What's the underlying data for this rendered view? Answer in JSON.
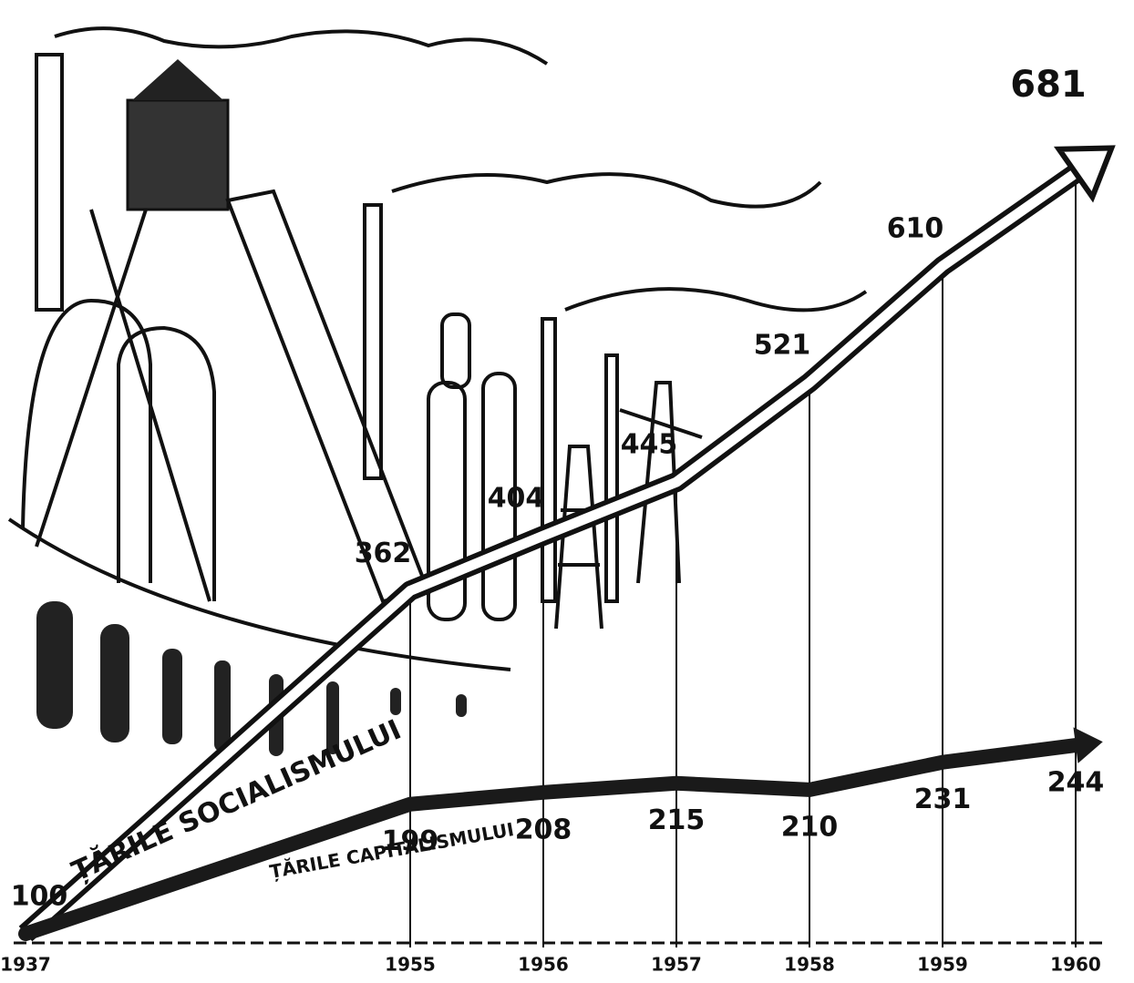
{
  "chart_data": {
    "type": "line",
    "categories": [
      "1937",
      "1955",
      "1956",
      "1957",
      "1958",
      "1959",
      "1960"
    ],
    "series": [
      {
        "name": "ȚĂRILE SOCIALISMULUI",
        "color": "#ffffff",
        "values": [
          100,
          362,
          404,
          445,
          521,
          610,
          681
        ]
      },
      {
        "name": "ȚĂRILE CAPITALISMULUI",
        "color": "#1a1a1a",
        "values": [
          100,
          199,
          208,
          215,
          210,
          231,
          244
        ]
      }
    ]
  }
}
